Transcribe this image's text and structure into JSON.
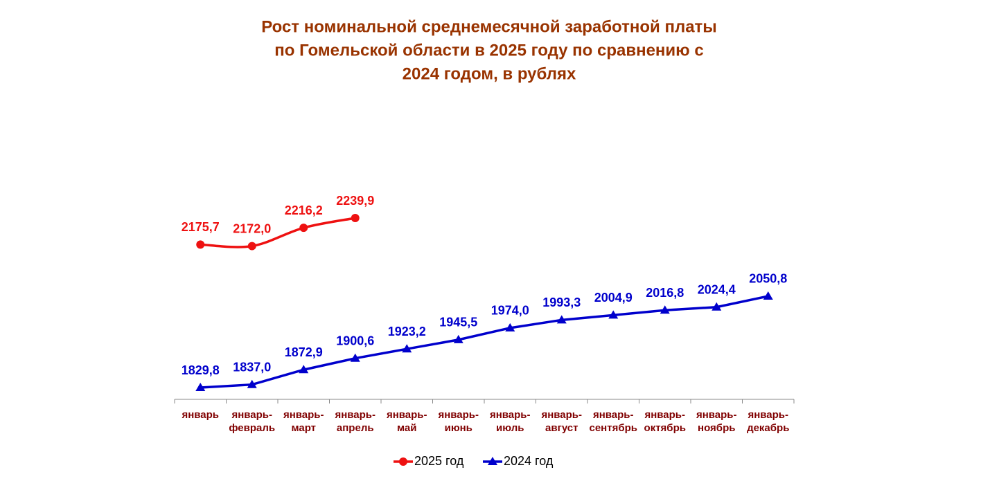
{
  "chart_data": {
    "type": "line",
    "title": [
      "Рост номинальной среднемесячной заработной платы",
      "по Гомельской области в 2025 году по сравнению с",
      "2024 годом, в рублях"
    ],
    "categories": [
      "январь",
      "январь-февраль",
      "январь-март",
      "январь-апрель",
      "январь-май",
      "январь-июнь",
      "январь-июль",
      "январь-август",
      "январь-сентябрь",
      "январь-октябрь",
      "январь-ноябрь",
      "январь-декабрь"
    ],
    "series": [
      {
        "name": "2025 год",
        "color": "#ee1111",
        "marker": "circle",
        "smooth": true,
        "values": [
          2175.7,
          2172.0,
          2216.2,
          2239.9,
          null,
          null,
          null,
          null,
          null,
          null,
          null,
          null
        ],
        "value_labels": [
          "2175,7",
          "2172,0",
          "2216,2",
          "2239,9",
          null,
          null,
          null,
          null,
          null,
          null,
          null,
          null
        ]
      },
      {
        "name": "2024 год",
        "color": "#0000cc",
        "marker": "triangle",
        "smooth": false,
        "values": [
          1829.8,
          1837.0,
          1872.9,
          1900.6,
          1923.2,
          1945.5,
          1974.0,
          1993.3,
          2004.9,
          2016.8,
          2024.4,
          2050.8
        ],
        "value_labels": [
          "1829,8",
          "1837,0",
          "1872,9",
          "1900,6",
          "1923,2",
          "1945,5",
          "1974,0",
          "1993,3",
          "2004,9",
          "2016,8",
          "2024,4",
          "2050,8"
        ]
      }
    ],
    "legend": "bottom"
  }
}
